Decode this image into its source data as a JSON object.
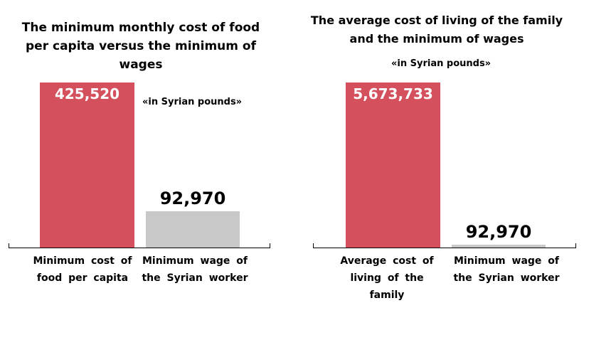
{
  "colors": {
    "primary": "#d4505d",
    "secondary": "#c8c8c8"
  },
  "chart_data": [
    {
      "type": "bar",
      "title": "The minimum monthly cost of food per capita versus the minimum of wages",
      "unit_note": "«in Syrian pounds»",
      "categories": [
        "Minimum cost of food per capita",
        "Minimum wage of the Syrian worker"
      ],
      "values": [
        425520,
        92970
      ],
      "value_labels": [
        "425,520",
        "92,970"
      ],
      "ylim": [
        0,
        425520
      ]
    },
    {
      "type": "bar",
      "title": "The average cost of living of the family and the minimum of wages",
      "unit_note": "«in Syrian pounds»",
      "categories": [
        "Average cost of living of the family",
        "Minimum wage of the Syrian worker"
      ],
      "values": [
        5673733,
        92970
      ],
      "value_labels": [
        "5,673,733",
        "92,970"
      ],
      "ylim": [
        0,
        5673733
      ]
    }
  ]
}
